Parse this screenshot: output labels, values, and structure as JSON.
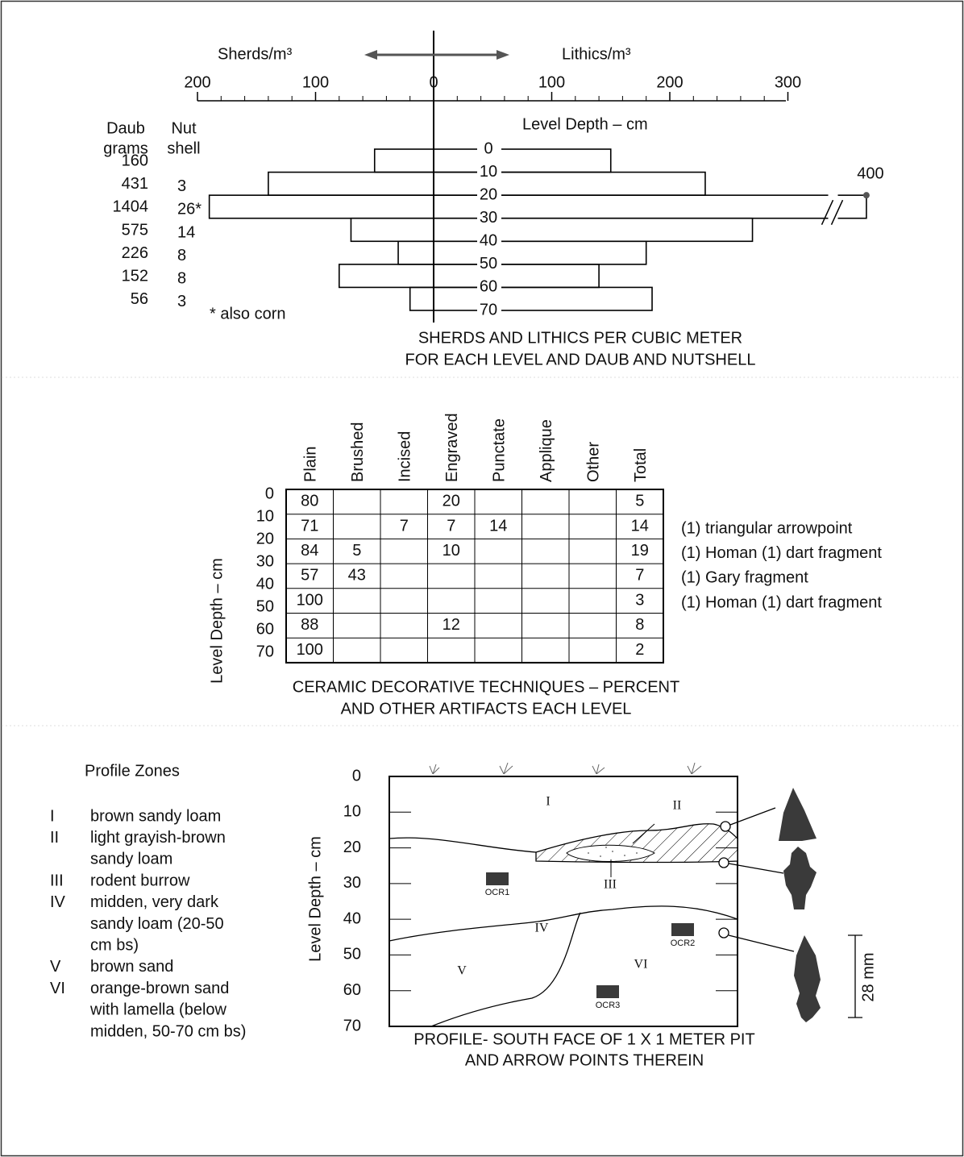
{
  "chart_data": {
    "type": "bar",
    "orientation": "horizontal-back-to-back",
    "title_lines": [
      "SHERDS AND LITHICS PER CUBIC METER",
      "FOR EACH LEVEL AND DAUB AND NUTSHELL"
    ],
    "y_label": "Level Depth – cm",
    "xlim": [
      -200,
      300
    ],
    "xticks": [
      {
        "value": -200,
        "label": "200"
      },
      {
        "value": -100,
        "label": "100"
      },
      0,
      100,
      200,
      300
    ],
    "ylim": [
      0,
      70
    ],
    "yticks": [
      0,
      10,
      20,
      30,
      40,
      50,
      60,
      70
    ],
    "series": [
      {
        "name": "Sherds/m³",
        "side": "left",
        "color": "#000000",
        "values": [
          50,
          140,
          190,
          70,
          30,
          80,
          20
        ]
      },
      {
        "name": "Lithics/m³",
        "side": "right",
        "color": "#000000",
        "values": [
          150,
          230,
          400,
          270,
          180,
          140,
          185
        ],
        "value_labels": [
          null,
          null,
          "400",
          null,
          null,
          null,
          null
        ]
      }
    ],
    "daub": {
      "header": [
        "Daub",
        "grams"
      ],
      "values": [
        160,
        431,
        1404,
        575,
        226,
        152,
        56
      ]
    },
    "nutshell": {
      "header": [
        "Nut",
        "shell"
      ],
      "values": [
        null,
        3,
        26,
        14,
        8,
        8,
        3
      ],
      "value_labels": [
        null,
        null,
        "26*",
        null,
        null,
        null,
        null
      ]
    },
    "footnote": "*   also corn"
  },
  "ceramics": {
    "columns": [
      "Plain",
      "Brushed",
      "Incised",
      "Engraved",
      "Punctate",
      "Applique",
      "Other",
      "Total"
    ],
    "levels": [
      0,
      10,
      20,
      30,
      40,
      50,
      60,
      70
    ],
    "y_label": "Level Depth – cm",
    "rows": [
      [
        80,
        null,
        null,
        20,
        null,
        null,
        null,
        5
      ],
      [
        71,
        null,
        7,
        7,
        14,
        null,
        null,
        14
      ],
      [
        84,
        5,
        null,
        10,
        null,
        null,
        null,
        19
      ],
      [
        57,
        43,
        null,
        null,
        null,
        null,
        null,
        7
      ],
      [
        100,
        null,
        null,
        null,
        null,
        null,
        null,
        3
      ],
      [
        88,
        null,
        null,
        12,
        null,
        null,
        null,
        8
      ],
      [
        100,
        null,
        null,
        null,
        null,
        null,
        null,
        2
      ]
    ],
    "notes": [
      null,
      "(1)  triangular arrowpoint",
      "(1)  Homan  (1)  dart fragment",
      "(1)  Gary fragment",
      "(1)  Homan  (1)  dart fragment",
      null,
      null
    ],
    "caption": [
      "CERAMIC DECORATIVE  TECHNIQUES – PERCENT",
      "AND OTHER ARTIFACTS EACH LEVEL"
    ]
  },
  "profile": {
    "legend_title": "Profile Zones",
    "zones": [
      {
        "id": "I",
        "lines": [
          "brown sandy loam"
        ]
      },
      {
        "id": "II",
        "lines": [
          "light grayish-brown",
          "sandy loam"
        ]
      },
      {
        "id": "III",
        "lines": [
          "rodent  burrow"
        ]
      },
      {
        "id": "IV",
        "lines": [
          "midden, very dark",
          "sandy loam (20-50",
          "cm bs)"
        ]
      },
      {
        "id": "V",
        "lines": [
          "brown sand"
        ]
      },
      {
        "id": "VI",
        "lines": [
          "orange-brown sand",
          "with lamella (below",
          "midden, 50-70  cm bs)"
        ]
      }
    ],
    "depth_ticks": [
      0,
      10,
      20,
      30,
      40,
      50,
      60,
      70
    ],
    "y_label": "Level Depth – cm",
    "samples": [
      "OCR1",
      "OCR2",
      "OCR3"
    ],
    "scale_label": "28 mm",
    "caption": [
      "PROFILE- SOUTH FACE OF  1 X 1  METER PIT",
      "AND ARROW POINTS  THEREIN"
    ]
  }
}
